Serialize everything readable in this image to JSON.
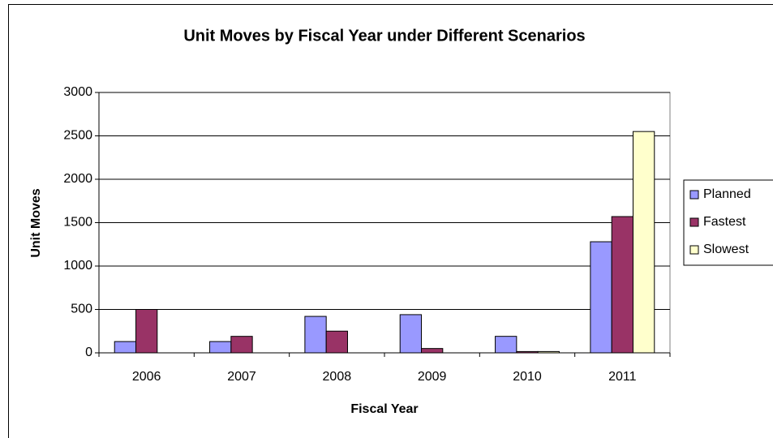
{
  "chart_data": {
    "type": "bar",
    "title": "Unit Moves by Fiscal Year under Different Scenarios",
    "x_label": "Fiscal Year",
    "y_label": "Unit Moves",
    "categories": [
      "2006",
      "2007",
      "2008",
      "2009",
      "2010",
      "2011"
    ],
    "series": [
      {
        "name": "Planned",
        "color": "#9999ff",
        "values": [
          130,
          130,
          420,
          440,
          190,
          1280
        ]
      },
      {
        "name": "Fastest",
        "color": "#993366",
        "values": [
          500,
          190,
          250,
          50,
          15,
          1570
        ]
      },
      {
        "name": "Slowest",
        "color": "#ffffcc",
        "values": [
          0,
          0,
          0,
          0,
          15,
          2550
        ]
      }
    ],
    "ylim": [
      0,
      3000
    ],
    "yticks": [
      0,
      500,
      1000,
      1500,
      2000,
      2500,
      3000
    ],
    "grid": true,
    "legend": "right"
  }
}
